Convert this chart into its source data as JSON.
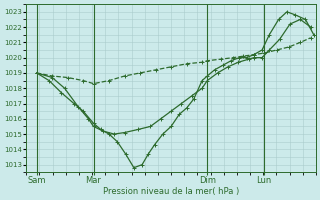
{
  "xlabel": "Pression niveau de la mer( hPa )",
  "background_color": "#cceaea",
  "grid_color": "#aacccc",
  "line_color": "#2d6b2d",
  "ylim": [
    1012.5,
    1023.5
  ],
  "yticks": [
    1013,
    1014,
    1015,
    1016,
    1017,
    1018,
    1019,
    1020,
    1021,
    1022,
    1023
  ],
  "xlim": [
    0,
    280
  ],
  "x_tick_positions": [
    10,
    65,
    175,
    230
  ],
  "x_tick_labels": [
    "Sam",
    "Mar",
    "Dim",
    "Lun"
  ],
  "vlines": [
    10,
    65,
    175,
    230
  ],
  "series1_x": [
    10,
    25,
    40,
    55,
    65,
    80,
    95,
    110,
    125,
    140,
    155,
    170,
    175,
    188,
    200,
    210,
    220,
    230,
    242,
    254,
    265,
    275
  ],
  "series1_y": [
    1019.0,
    1018.8,
    1018.7,
    1018.5,
    1018.3,
    1018.5,
    1018.8,
    1019.0,
    1019.2,
    1019.4,
    1019.6,
    1019.7,
    1019.8,
    1019.9,
    1020.0,
    1020.1,
    1020.2,
    1020.3,
    1020.5,
    1020.7,
    1021.0,
    1021.3
  ],
  "series2_x": [
    10,
    22,
    34,
    46,
    55,
    65,
    72,
    80,
    88,
    96,
    104,
    112,
    118,
    124,
    132,
    140,
    148,
    155,
    162,
    170,
    175,
    182,
    190,
    198,
    206,
    213,
    220,
    228,
    235,
    244,
    252,
    260,
    270,
    278
  ],
  "series2_y": [
    1019.0,
    1018.5,
    1017.7,
    1017.0,
    1016.5,
    1015.7,
    1015.3,
    1015.0,
    1014.5,
    1013.7,
    1012.8,
    1013.0,
    1013.7,
    1014.3,
    1015.0,
    1015.5,
    1016.3,
    1016.7,
    1017.3,
    1018.5,
    1018.8,
    1019.2,
    1019.5,
    1019.8,
    1020.0,
    1020.0,
    1020.2,
    1020.5,
    1021.5,
    1022.5,
    1023.0,
    1022.8,
    1022.5,
    1021.5
  ],
  "series3_x": [
    10,
    25,
    37,
    50,
    60,
    65,
    74,
    85,
    95,
    108,
    120,
    130,
    140,
    150,
    160,
    170,
    175,
    185,
    195,
    205,
    215,
    220,
    228,
    235,
    245,
    255,
    265,
    275
  ],
  "series3_y": [
    1019.0,
    1018.7,
    1018.0,
    1016.8,
    1016.0,
    1015.5,
    1015.2,
    1015.0,
    1015.1,
    1015.3,
    1015.5,
    1016.0,
    1016.5,
    1017.0,
    1017.5,
    1018.0,
    1018.5,
    1019.0,
    1019.4,
    1019.7,
    1019.9,
    1020.0,
    1020.0,
    1020.5,
    1021.2,
    1022.2,
    1022.5,
    1022.0
  ]
}
